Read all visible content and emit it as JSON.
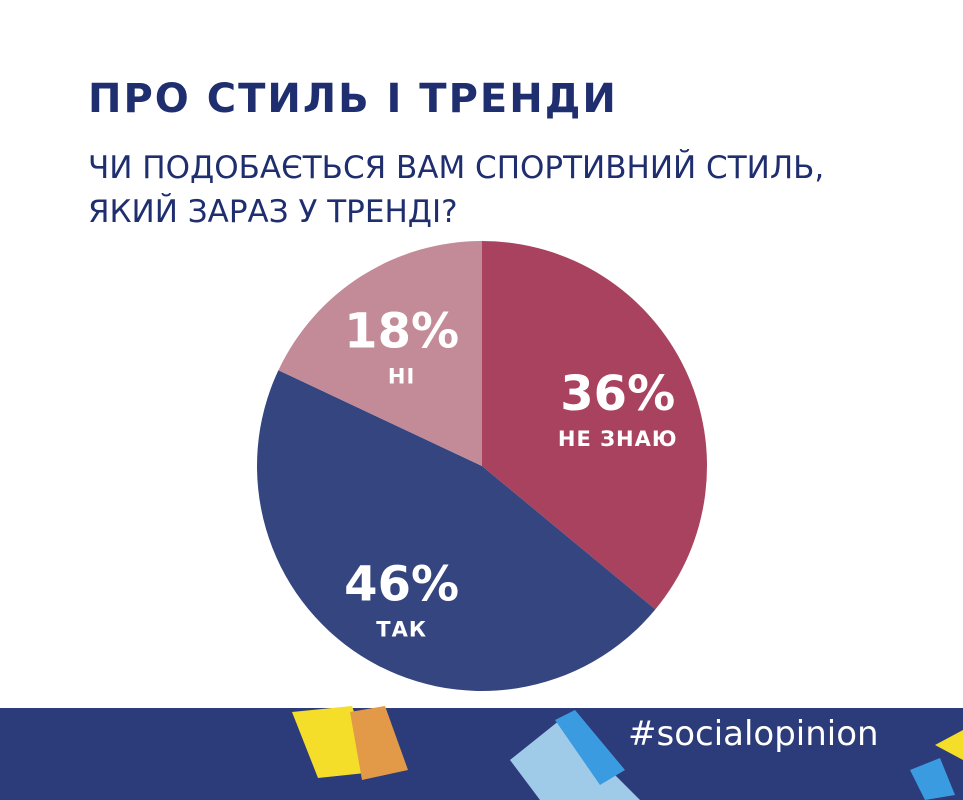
{
  "chart_data": {
    "type": "pie",
    "title": "ПРО СТИЛЬ І ТРЕНДИ",
    "subtitle": [
      "ЧИ ПОДОБАЄТЬСЯ ВАМ СПОРТИВНИЙ СТИЛЬ,",
      "ЯКИЙ ЗАРАЗ У ТРЕНДІ?"
    ],
    "categories": [
      "НЕ ЗНАЮ",
      "ТАК",
      "НІ"
    ],
    "values": [
      36,
      46,
      18
    ],
    "value_labels": [
      "36%",
      "46%",
      "18%"
    ],
    "colors": [
      "#a8425e",
      "#344580",
      "#c38b97"
    ]
  },
  "footer": {
    "hashtag": "#socialopinion"
  }
}
